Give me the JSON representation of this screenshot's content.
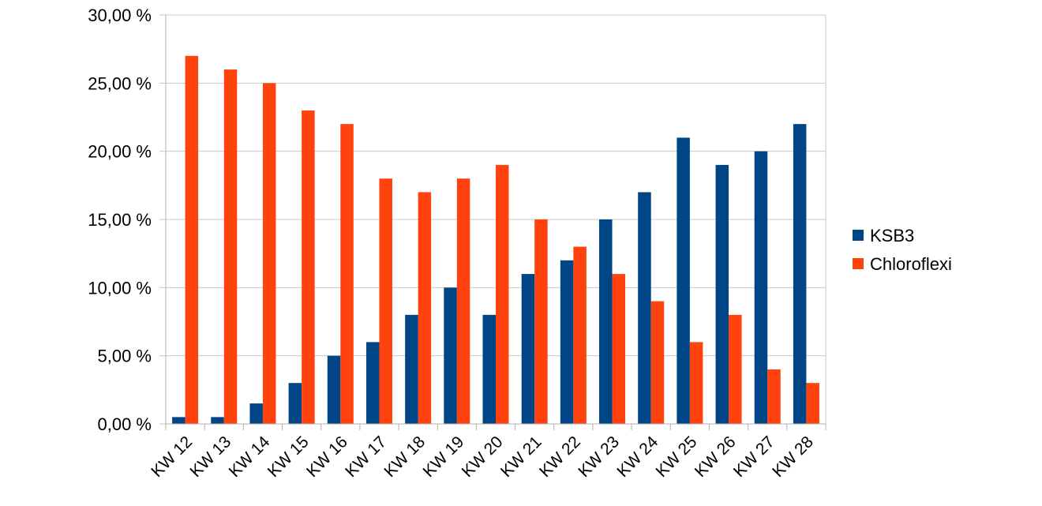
{
  "chart_data": {
    "type": "bar",
    "title": "",
    "xlabel": "",
    "ylabel": "",
    "categories": [
      "KW 12",
      "KW 13",
      "KW 14",
      "KW 15",
      "KW 16",
      "KW 17",
      "KW 18",
      "KW 19",
      "KW 20",
      "KW 21",
      "KW 22",
      "KW 23",
      "KW 24",
      "KW 25",
      "KW 26",
      "KW 27",
      "KW 28"
    ],
    "series": [
      {
        "name": "KSB3",
        "color": "#004586",
        "values": [
          0.5,
          0.5,
          1.5,
          3,
          5,
          6,
          8,
          10,
          8,
          11,
          12,
          15,
          17,
          21,
          19,
          20,
          22
        ]
      },
      {
        "name": "Chloroflexi",
        "color": "#ff420e",
        "values": [
          27,
          26,
          25,
          23,
          22,
          18,
          17,
          18,
          19,
          15,
          13,
          11,
          9,
          6,
          8,
          4,
          3
        ]
      }
    ],
    "ylim": [
      0,
      30
    ],
    "yticks": [
      "0,00 %",
      "5,00 %",
      "10,00 %",
      "15,00 %",
      "20,00 %",
      "25,00 %",
      "30,00 %"
    ],
    "grid": true,
    "legend_position": "right"
  }
}
